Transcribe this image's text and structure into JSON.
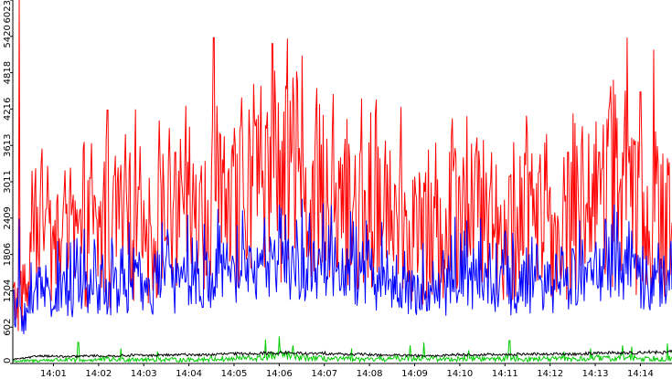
{
  "chart_data": {
    "type": "line",
    "title": "",
    "xlabel": "",
    "ylabel": "",
    "ylim": [
      0,
      6023
    ],
    "y_ticks": [
      0,
      602,
      1204,
      1806,
      2409,
      3011,
      3613,
      4216,
      4818,
      5420,
      6023
    ],
    "y_tick_labels": [
      "0",
      "602",
      "1204",
      "1806",
      "2409",
      "3011",
      "3613",
      "4216",
      "4818",
      "5420",
      "6023"
    ],
    "x_range_minutes": [
      840.1,
      854.7
    ],
    "x_ticks": [
      841,
      842,
      843,
      844,
      845,
      846,
      847,
      848,
      849,
      850,
      851,
      852,
      853,
      854
    ],
    "x_tick_labels": [
      "14:01",
      "14:02",
      "14:03",
      "14:04",
      "14:05",
      "14:06",
      "14:07",
      "14:08",
      "14:09",
      "14:10",
      "14:11",
      "14:12",
      "14:13",
      "14:14"
    ],
    "grid": false,
    "legend": "none",
    "series": [
      {
        "color": "#ff0000",
        "x": [
          840.1,
          840.4,
          840.7,
          841.0,
          841.3,
          841.6,
          841.9,
          842.2,
          842.5,
          842.8,
          843.1,
          843.4,
          843.7,
          844.0,
          844.3,
          844.6,
          844.9,
          845.2,
          845.5,
          845.8,
          846.1,
          846.4,
          846.7,
          847.0,
          847.3,
          847.6,
          847.9,
          848.2,
          848.5,
          848.8,
          849.1,
          849.4,
          849.7,
          850.0,
          850.3,
          850.6,
          850.9,
          851.2,
          851.5,
          851.8,
          852.1,
          852.4,
          852.7,
          853.0,
          853.3,
          853.6,
          853.9,
          854.2,
          854.5,
          854.7
        ],
        "y": [
          1000,
          1100,
          2600,
          1800,
          1900,
          2000,
          2100,
          2000,
          2200,
          2300,
          2100,
          2300,
          2000,
          2400,
          2300,
          2500,
          2400,
          2600,
          2700,
          2900,
          3000,
          2700,
          2800,
          2700,
          2600,
          2500,
          2400,
          2400,
          2300,
          2300,
          2100,
          2000,
          2200,
          2600,
          2500,
          2400,
          2300,
          2200,
          2300,
          2400,
          2200,
          2300,
          2400,
          2600,
          2800,
          2700,
          2500,
          2400,
          2300,
          2300
        ],
        "peaks": [
          [
            840.25,
            6023
          ],
          [
            841.25,
            3200
          ],
          [
            842.2,
            4200
          ],
          [
            842.6,
            3800
          ],
          [
            843.7,
            3500
          ],
          [
            844.55,
            5400
          ],
          [
            845.6,
            4600
          ],
          [
            845.85,
            5300
          ],
          [
            846.15,
            4600
          ],
          [
            846.5,
            5100
          ],
          [
            847.4,
            3300
          ],
          [
            848.4,
            3300
          ],
          [
            849.2,
            3000
          ],
          [
            850.0,
            3100
          ],
          [
            850.7,
            3500
          ],
          [
            851.1,
            3100
          ],
          [
            851.5,
            3800
          ],
          [
            852.4,
            3500
          ],
          [
            853.1,
            3500
          ],
          [
            853.4,
            4700
          ],
          [
            853.7,
            5400
          ],
          [
            854.0,
            4500
          ],
          [
            854.3,
            5200
          ],
          [
            854.6,
            3400
          ]
        ]
      },
      {
        "color": "#0000ff",
        "x": [
          840.1,
          840.4,
          840.7,
          841.0,
          841.3,
          841.6,
          841.9,
          842.2,
          842.5,
          842.8,
          843.1,
          843.4,
          843.7,
          844.0,
          844.3,
          844.6,
          844.9,
          845.2,
          845.5,
          845.8,
          846.1,
          846.4,
          846.7,
          847.0,
          847.3,
          847.6,
          847.9,
          848.2,
          848.5,
          848.8,
          849.1,
          849.4,
          849.7,
          850.0,
          850.3,
          850.6,
          850.9,
          851.2,
          851.5,
          851.8,
          852.1,
          852.4,
          852.7,
          853.0,
          853.3,
          853.6,
          853.9,
          854.2,
          854.5,
          854.7
        ],
        "y": [
          700,
          750,
          1300,
          1100,
          1150,
          1200,
          1250,
          1200,
          1250,
          1300,
          1200,
          1300,
          1250,
          1350,
          1300,
          1400,
          1350,
          1450,
          1500,
          1550,
          1600,
          1500,
          1550,
          1500,
          1450,
          1400,
          1350,
          1300,
          1250,
          1200,
          1100,
          1050,
          1200,
          1400,
          1350,
          1300,
          1250,
          1200,
          1250,
          1300,
          1200,
          1250,
          1300,
          1400,
          1500,
          1450,
          1400,
          1350,
          1300,
          1300
        ],
        "peaks": [
          [
            840.25,
            2400
          ],
          [
            841.3,
            2000
          ],
          [
            842.5,
            1900
          ],
          [
            843.5,
            1800
          ],
          [
            844.6,
            1900
          ],
          [
            845.8,
            2100
          ],
          [
            846.4,
            2000
          ],
          [
            847.5,
            1900
          ],
          [
            848.6,
            1800
          ],
          [
            849.4,
            1700
          ],
          [
            850.1,
            2200
          ],
          [
            850.8,
            2000
          ],
          [
            851.6,
            2100
          ],
          [
            852.5,
            1900
          ],
          [
            853.3,
            2100
          ],
          [
            853.8,
            2200
          ],
          [
            854.4,
            2000
          ]
        ]
      },
      {
        "color": "#00cc00",
        "x": [
          840.1,
          840.4,
          840.7,
          841.0,
          841.3,
          841.6,
          841.9,
          842.2,
          842.5,
          842.8,
          843.1,
          843.4,
          843.7,
          844.0,
          844.3,
          844.6,
          844.9,
          845.2,
          845.5,
          845.8,
          846.1,
          846.4,
          846.7,
          847.0,
          847.3,
          847.6,
          847.9,
          848.2,
          848.5,
          848.8,
          849.1,
          849.4,
          849.7,
          850.0,
          850.3,
          850.6,
          850.9,
          851.2,
          851.5,
          851.8,
          852.1,
          852.4,
          852.7,
          853.0,
          853.3,
          853.6,
          853.9,
          854.2,
          854.5,
          854.7
        ],
        "y": [
          40,
          40,
          50,
          60,
          60,
          50,
          60,
          70,
          60,
          80,
          60,
          70,
          60,
          60,
          70,
          80,
          70,
          90,
          80,
          120,
          150,
          100,
          90,
          80,
          70,
          70,
          60,
          70,
          80,
          90,
          100,
          80,
          70,
          80,
          90,
          70,
          80,
          90,
          70,
          80,
          70,
          80,
          70,
          90,
          80,
          100,
          90,
          80,
          90,
          80
        ],
        "peaks": [
          [
            841.55,
            350
          ],
          [
            842.5,
            250
          ],
          [
            843.3,
            200
          ],
          [
            845.7,
            400
          ],
          [
            846.0,
            450
          ],
          [
            846.3,
            300
          ],
          [
            847.6,
            250
          ],
          [
            848.9,
            300
          ],
          [
            849.2,
            350
          ],
          [
            850.2,
            220
          ],
          [
            851.1,
            380
          ],
          [
            852.3,
            200
          ],
          [
            852.9,
            250
          ],
          [
            853.6,
            300
          ],
          [
            853.8,
            280
          ],
          [
            854.6,
            330
          ]
        ]
      },
      {
        "color": "#000000",
        "x": [
          840.1,
          840.4,
          840.7,
          841.0,
          841.3,
          841.6,
          841.9,
          842.2,
          842.5,
          842.8,
          843.1,
          843.4,
          843.7,
          844.0,
          844.3,
          844.6,
          844.9,
          845.2,
          845.5,
          845.8,
          846.1,
          846.4,
          846.7,
          847.0,
          847.3,
          847.6,
          847.9,
          848.2,
          848.5,
          848.8,
          849.1,
          849.4,
          849.7,
          850.0,
          850.3,
          850.6,
          850.9,
          851.2,
          851.5,
          851.8,
          852.1,
          852.4,
          852.7,
          853.0,
          853.3,
          853.6,
          853.9,
          854.2,
          854.5,
          854.7
        ],
        "y": [
          70,
          90,
          130,
          120,
          110,
          120,
          130,
          120,
          130,
          140,
          130,
          140,
          140,
          150,
          140,
          150,
          160,
          160,
          170,
          170,
          180,
          170,
          160,
          170,
          160,
          150,
          150,
          140,
          140,
          130,
          130,
          120,
          140,
          150,
          140,
          150,
          140,
          150,
          160,
          150,
          160,
          150,
          160,
          170,
          180,
          170,
          180,
          190,
          180,
          200
        ],
        "peaks": []
      }
    ]
  }
}
